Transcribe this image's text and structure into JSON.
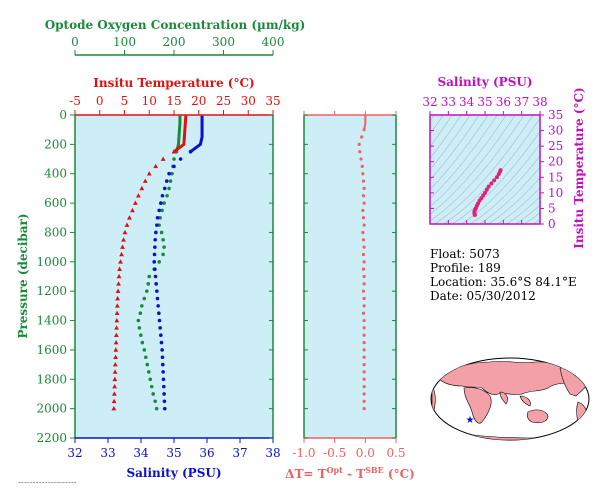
{
  "info": {
    "float": "Float:  5073",
    "profile": "Profile:  189",
    "location": "Location:  35.6°S  84.1°E",
    "date": "Date:  05/30/2012"
  },
  "colors": {
    "oxygen": "#1a8a3a",
    "temperature": "#e01010",
    "salinity": "#0a10d0",
    "delta_t": "#f06060",
    "ts_axis": "#c010c0",
    "ts_points": "#e0207a",
    "panel_bg": "#cdeef7",
    "float_marker": "#0a10d0"
  },
  "chart_data": [
    {
      "type": "line",
      "name": "profile-panel",
      "oxygen_axis": {
        "label": "Optode Oxygen Concentration (µm/kg)",
        "range": [
          0,
          400
        ],
        "ticks": [
          "0",
          "100",
          "200",
          "300",
          "400"
        ]
      },
      "temperature_axis": {
        "label": "Insitu Temperature (°C)",
        "range": [
          -5,
          35
        ],
        "ticks": [
          "-5",
          "0",
          "5",
          "10",
          "15",
          "20",
          "25",
          "30",
          "35"
        ]
      },
      "salinity_axis": {
        "label": "Salinity (PSU)",
        "range": [
          32,
          38
        ],
        "ticks": [
          "32",
          "33",
          "34",
          "35",
          "36",
          "37",
          "38"
        ]
      },
      "pressure_axis": {
        "label": "Pressure (decibar)",
        "range": [
          0,
          2200
        ],
        "ticks": [
          "0",
          "200",
          "400",
          "600",
          "800",
          "1000",
          "1200",
          "1400",
          "1600",
          "1800",
          "2000",
          "2200"
        ]
      },
      "temperature": {
        "pressure": [
          5,
          50,
          100,
          150,
          200,
          250,
          300,
          350,
          400,
          450,
          500,
          550,
          600,
          650,
          700,
          750,
          800,
          850,
          900,
          950,
          1000,
          1050,
          1100,
          1150,
          1200,
          1250,
          1300,
          1350,
          1400,
          1450,
          1500,
          1550,
          1600,
          1650,
          1700,
          1750,
          1800,
          1850,
          1900,
          1950,
          2000
        ],
        "values": [
          17.4,
          17.3,
          17.2,
          17.1,
          17.0,
          15.0,
          12.8,
          11.3,
          10.0,
          9.2,
          8.5,
          7.8,
          7.2,
          6.6,
          6.0,
          5.5,
          5.1,
          4.8,
          4.6,
          4.4,
          4.2,
          4.0,
          3.9,
          3.8,
          3.7,
          3.6,
          3.55,
          3.5,
          3.45,
          3.4,
          3.35,
          3.3,
          3.25,
          3.2,
          3.15,
          3.1,
          3.05,
          3.0,
          2.95,
          2.9,
          2.85
        ]
      },
      "salinity": {
        "pressure": [
          5,
          50,
          100,
          150,
          200,
          250,
          300,
          350,
          400,
          450,
          500,
          550,
          600,
          650,
          700,
          750,
          800,
          850,
          900,
          950,
          1000,
          1050,
          1100,
          1150,
          1200,
          1250,
          1300,
          1350,
          1400,
          1450,
          1500,
          1550,
          1600,
          1650,
          1700,
          1750,
          1800,
          1850,
          1900,
          1950,
          2000
        ],
        "values": [
          35.85,
          35.85,
          35.85,
          35.85,
          35.8,
          35.5,
          35.2,
          35.0,
          34.85,
          34.78,
          34.72,
          34.65,
          34.6,
          34.55,
          34.5,
          34.48,
          34.45,
          34.43,
          34.42,
          34.41,
          34.4,
          34.42,
          34.44,
          34.46,
          34.48,
          34.5,
          34.52,
          34.54,
          34.56,
          34.58,
          34.6,
          34.62,
          34.64,
          34.65,
          34.66,
          34.67,
          34.68,
          34.69,
          34.7,
          34.71,
          34.72
        ]
      },
      "oxygen": {
        "pressure": [
          5,
          50,
          100,
          150,
          200,
          250,
          300,
          350,
          400,
          450,
          500,
          550,
          600,
          650,
          700,
          750,
          800,
          850,
          900,
          950,
          1000,
          1050,
          1100,
          1150,
          1200,
          1250,
          1300,
          1350,
          1400,
          1450,
          1500,
          1550,
          1600,
          1650,
          1700,
          1750,
          1800,
          1850,
          1900,
          1950,
          2000
        ],
        "values": [
          212,
          212,
          211,
          210,
          209,
          205,
          200,
          198,
          196,
          193,
          190,
          186,
          180,
          176,
          172,
          170,
          175,
          178,
          180,
          178,
          170,
          160,
          150,
          148,
          145,
          140,
          135,
          132,
          128,
          130,
          133,
          136,
          140,
          143,
          146,
          149,
          152,
          155,
          158,
          162,
          165
        ]
      }
    },
    {
      "type": "scatter",
      "name": "delta-t-panel",
      "x_axis": {
        "label": "ΔT= T",
        "sup1": "Opt",
        "mid": " - T",
        "sup2": "SBE",
        "tail": " (°C)",
        "range": [
          -1.0,
          0.5
        ],
        "ticks": [
          "-1.0",
          "-0.5",
          "0.0",
          "0.5"
        ]
      },
      "pressure": [
        5,
        30,
        60,
        100,
        150,
        200,
        250,
        300,
        350,
        400,
        450,
        500,
        550,
        600,
        650,
        700,
        750,
        800,
        850,
        900,
        950,
        1000,
        1050,
        1100,
        1150,
        1200,
        1250,
        1300,
        1350,
        1400,
        1450,
        1500,
        1550,
        1600,
        1650,
        1700,
        1750,
        1800,
        1850,
        1900,
        1950,
        2000
      ],
      "values": [
        0.0,
        0.0,
        0.0,
        -0.02,
        -0.06,
        -0.1,
        -0.09,
        -0.07,
        -0.05,
        -0.04,
        -0.03,
        -0.02,
        -0.03,
        -0.02,
        -0.04,
        -0.03,
        -0.02,
        -0.04,
        -0.03,
        -0.02,
        -0.03,
        -0.02,
        -0.03,
        -0.02,
        -0.02,
        -0.03,
        -0.02,
        -0.02,
        -0.03,
        -0.02,
        -0.02,
        -0.02,
        -0.02,
        -0.02,
        -0.02,
        -0.02,
        -0.02,
        -0.02,
        -0.02,
        -0.02,
        -0.02,
        -0.02
      ]
    },
    {
      "type": "scatter",
      "name": "ts-diagram",
      "x_axis": {
        "label": "Salinity (PSU)",
        "range": [
          32,
          38
        ],
        "ticks": [
          "32",
          "33",
          "34",
          "35",
          "36",
          "37",
          "38"
        ]
      },
      "y_axis": {
        "label": "Insitu Temperature (°C)",
        "range": [
          0,
          35
        ],
        "ticks": [
          "0",
          "5",
          "10",
          "15",
          "20",
          "25",
          "30",
          "35"
        ]
      },
      "salinity": [
        34.45,
        34.43,
        34.42,
        34.42,
        34.45,
        34.5,
        34.55,
        34.62,
        34.7,
        34.8,
        34.9,
        35.0,
        35.1,
        35.2,
        35.35,
        35.5,
        35.65,
        35.75,
        35.82,
        35.85
      ],
      "temperature": [
        2.9,
        3.2,
        3.6,
        4.0,
        4.5,
        5.0,
        5.8,
        6.6,
        7.5,
        8.3,
        9.2,
        10.0,
        11.0,
        12.0,
        13.0,
        14.0,
        15.0,
        16.0,
        16.8,
        17.3
      ]
    }
  ]
}
